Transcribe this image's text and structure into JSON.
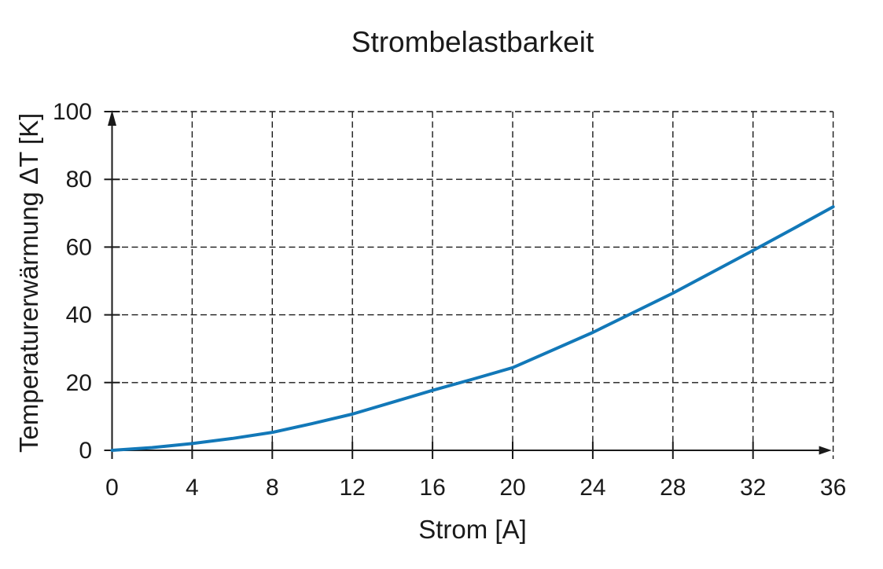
{
  "chart_data": {
    "type": "line",
    "title": "Strombelastbarkeit",
    "xlabel": "Strom [A]",
    "ylabel": "Temperaturerwärmung ΔT [K]",
    "xlim": [
      0,
      36
    ],
    "ylim": [
      0,
      100
    ],
    "x_ticks": [
      0,
      4,
      8,
      12,
      16,
      20,
      24,
      28,
      32,
      36
    ],
    "y_ticks": [
      0,
      20,
      40,
      60,
      80,
      100
    ],
    "grid": "dashed-both-axes",
    "legend": "none",
    "axis_style": "arrows-on-x-and-y",
    "colors": {
      "curve": "#1278b8",
      "axis": "#1a1a1a",
      "text": "#1a1a1a",
      "background": "#ffffff"
    },
    "series": [
      {
        "name": "Temperaturerwärmung ΔT",
        "color": "#1278b8",
        "x": [
          0,
          2,
          4,
          6,
          8,
          10,
          12,
          14,
          16,
          18,
          20,
          22,
          24,
          26,
          28,
          30,
          32,
          34,
          36
        ],
        "y": [
          0,
          0.8,
          2.0,
          3.5,
          5.3,
          7.9,
          10.7,
          14.2,
          17.7,
          21.0,
          24.4,
          29.6,
          34.8,
          40.6,
          46.4,
          52.7,
          59.0,
          65.4,
          71.9
        ]
      }
    ]
  }
}
